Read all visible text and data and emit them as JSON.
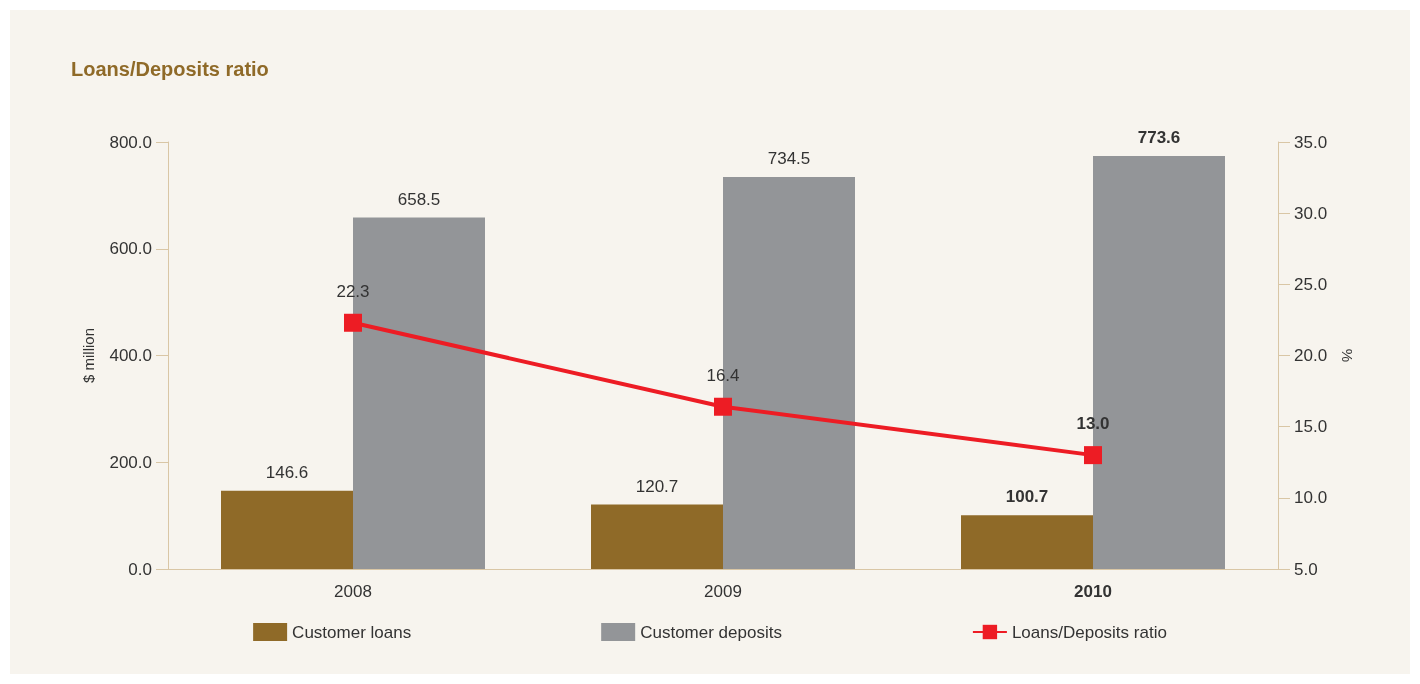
{
  "chart_data": {
    "type": "bar",
    "title": "Loans/Deposits ratio",
    "categories": [
      "2008",
      "2009",
      "2010"
    ],
    "series": [
      {
        "name": "Customer loans",
        "color": "#8f6a28",
        "values": [
          146.6,
          120.7,
          100.7
        ],
        "value_labels": [
          "146.6",
          "120.7",
          "100.7"
        ]
      },
      {
        "name": "Customer deposits",
        "color": "#939598",
        "values": [
          658.5,
          734.5,
          773.6
        ],
        "value_labels": [
          "658.5",
          "734.5",
          "773.6"
        ]
      },
      {
        "name": "Loans/Deposits ratio",
        "type": "line",
        "axis": "y2",
        "color": "#ed1c24",
        "values": [
          22.3,
          16.4,
          13.0
        ],
        "value_labels": [
          "22.3",
          "16.4",
          "13.0"
        ]
      }
    ],
    "ylabel": "$ million",
    "y2label": "%",
    "ylim": [
      0,
      800
    ],
    "yticks": [
      {
        "value": 0,
        "label": "0.0"
      },
      {
        "value": 200,
        "label": "200.0"
      },
      {
        "value": 400,
        "label": "400.0"
      },
      {
        "value": 600,
        "label": "600.0"
      },
      {
        "value": 800,
        "label": "800.0"
      }
    ],
    "y2lim": [
      5,
      35
    ],
    "y2ticks": [
      {
        "value": 5,
        "label": "5.0"
      },
      {
        "value": 10,
        "label": "10.0"
      },
      {
        "value": 15,
        "label": "15.0"
      },
      {
        "value": 20,
        "label": "20.0"
      },
      {
        "value": 25,
        "label": "25.0"
      },
      {
        "value": 30,
        "label": "30.0"
      },
      {
        "value": 35,
        "label": "35.0"
      }
    ],
    "grid": false,
    "legend": "bottom",
    "marker": "square",
    "line_style": "solid"
  }
}
